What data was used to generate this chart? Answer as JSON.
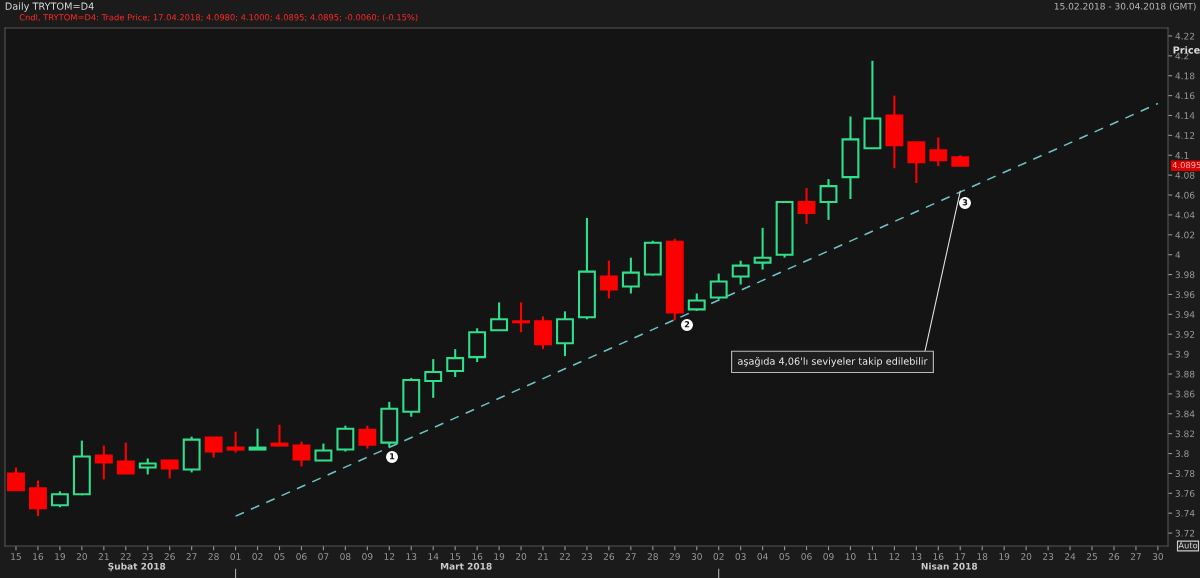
{
  "chart_data": {
    "type": "candlestick",
    "title": "Daily TRYTOM=D4",
    "subtitle": "Cndl, TRYTOM=D4: Trade Price; 17.04.2018; 4.0980; 4.1000; 4.0895; 4.0895; -0.0060; (-0.15%)",
    "ylabel": "Price",
    "categories": [
      "15",
      "16",
      "19",
      "20",
      "21",
      "22",
      "23",
      "26",
      "27",
      "28",
      "01",
      "02",
      "05",
      "06",
      "07",
      "08",
      "09",
      "12",
      "13",
      "14",
      "15",
      "16",
      "19",
      "20",
      "21",
      "22",
      "23",
      "26",
      "27",
      "28",
      "29",
      "30",
      "02",
      "03",
      "04",
      "05",
      "06",
      "09",
      "10",
      "11",
      "12",
      "13",
      "16",
      "17",
      "18",
      "19",
      "20",
      "23",
      "24",
      "25",
      "26",
      "27",
      "30"
    ],
    "ohlc": [
      [
        3.78,
        3.786,
        3.763,
        3.763
      ],
      [
        3.765,
        3.773,
        3.737,
        3.745
      ],
      [
        3.748,
        3.762,
        3.746,
        3.759
      ],
      [
        3.759,
        3.813,
        3.758,
        3.797
      ],
      [
        3.798,
        3.808,
        3.774,
        3.791
      ],
      [
        3.792,
        3.811,
        3.78,
        3.78
      ],
      [
        3.786,
        3.795,
        3.779,
        3.79
      ],
      [
        3.793,
        3.793,
        3.775,
        3.785
      ],
      [
        3.784,
        3.817,
        3.781,
        3.814
      ],
      [
        3.816,
        3.816,
        3.796,
        3.802
      ],
      [
        3.806,
        3.822,
        3.801,
        3.804
      ],
      [
        3.804,
        3.825,
        3.804,
        3.806
      ],
      [
        3.81,
        3.829,
        3.808,
        3.808
      ],
      [
        3.808,
        3.812,
        3.787,
        3.794
      ],
      [
        3.793,
        3.81,
        3.793,
        3.803
      ],
      [
        3.804,
        3.828,
        3.802,
        3.825
      ],
      [
        3.824,
        3.828,
        3.805,
        3.809
      ],
      [
        3.811,
        3.852,
        3.806,
        3.845
      ],
      [
        3.842,
        3.876,
        3.837,
        3.874
      ],
      [
        3.873,
        3.895,
        3.856,
        3.882
      ],
      [
        3.883,
        3.905,
        3.877,
        3.896
      ],
      [
        3.897,
        3.926,
        3.892,
        3.922
      ],
      [
        3.924,
        3.952,
        3.924,
        3.935
      ],
      [
        3.933,
        3.952,
        3.922,
        3.932
      ],
      [
        3.933,
        3.938,
        3.905,
        3.91
      ],
      [
        3.911,
        3.943,
        3.898,
        3.935
      ],
      [
        3.937,
        4.037,
        3.935,
        3.983
      ],
      [
        3.978,
        3.994,
        3.956,
        3.965
      ],
      [
        3.968,
        3.997,
        3.961,
        3.982
      ],
      [
        3.98,
        4.014,
        3.979,
        4.012
      ],
      [
        4.013,
        4.016,
        3.934,
        3.942
      ],
      [
        3.945,
        3.961,
        3.944,
        3.954
      ],
      [
        3.957,
        3.981,
        3.955,
        3.973
      ],
      [
        3.978,
        3.994,
        3.97,
        3.989
      ],
      [
        3.992,
        4.027,
        3.985,
        3.997
      ],
      [
        4.0,
        4.053,
        3.997,
        4.053
      ],
      [
        4.053,
        4.067,
        4.031,
        4.042
      ],
      [
        4.053,
        4.076,
        4.035,
        4.069
      ],
      [
        4.078,
        4.139,
        4.056,
        4.116
      ],
      [
        4.107,
        4.195,
        4.107,
        4.137
      ],
      [
        4.14,
        4.16,
        4.087,
        4.11
      ],
      [
        4.113,
        4.113,
        4.072,
        4.093
      ],
      [
        4.105,
        4.118,
        4.089,
        4.095
      ],
      [
        4.098,
        4.1,
        4.0895,
        4.0895
      ],
      null,
      null,
      null,
      null,
      null,
      null,
      null,
      null,
      null
    ],
    "colors": [
      "#ff0000",
      "#ff0000",
      "#2ee08c",
      "#2ee08c",
      "#ff0000",
      "#ff0000",
      "#2ee08c",
      "#ff0000",
      "#2ee08c",
      "#ff0000",
      "#ff0000",
      "#2ee08c",
      "#ff0000",
      "#ff0000",
      "#2ee08c",
      "#2ee08c",
      "#ff0000",
      "#2ee08c",
      "#2ee08c",
      "#2ee08c",
      "#2ee08c",
      "#2ee08c",
      "#2ee08c",
      "#ff0000",
      "#ff0000",
      "#2ee08c",
      "#2ee08c",
      "#ff0000",
      "#2ee08c",
      "#2ee08c",
      "#ff0000",
      "#2ee08c",
      "#2ee08c",
      "#2ee08c",
      "#2ee08c",
      "#2ee08c",
      "#ff0000",
      "#2ee08c",
      "#2ee08c",
      "#2ee08c",
      "#ff0000",
      "#ff0000",
      "#ff0000",
      "#ff0000",
      null,
      null,
      null,
      null,
      null,
      null,
      null,
      null,
      null
    ],
    "series": [
      {
        "type": "line",
        "color": "#6cc4c4",
        "line_style": "dashed",
        "values": [
          null,
          null,
          null,
          null,
          null,
          null,
          null,
          null,
          null,
          null,
          3.737,
          null,
          null,
          null,
          null,
          null,
          null,
          null,
          null,
          null,
          null,
          null,
          null,
          null,
          null,
          null,
          null,
          null,
          null,
          null,
          null,
          null,
          null,
          null,
          null,
          null,
          null,
          null,
          null,
          null,
          null,
          null,
          null,
          null,
          null,
          null,
          null,
          null,
          null,
          null,
          null,
          null,
          4.152
        ]
      }
    ],
    "ylim": [
      3.707,
      4.228
    ],
    "yticks": [
      3.72,
      3.74,
      3.76,
      3.78,
      3.8,
      3.82,
      3.84,
      3.86,
      3.88,
      3.9,
      3.92,
      3.94,
      3.96,
      3.98,
      4,
      4.02,
      4.04,
      4.06,
      4.08,
      4.1,
      4.12,
      4.14,
      4.16,
      4.18,
      4.2,
      4.22
    ],
    "grid": false,
    "legend": false,
    "annotations": [
      "15.02.2018 - 30.04.2018 (GMT)",
      "Şubat 2018",
      "Mart 2018",
      "Nisan 2018",
      "1",
      "2",
      "3",
      {
        "text": "aşağıda 4,06'lı seviyeler takip edilebilir",
        "x": "17",
        "y": 4.064
      },
      {
        "text": "4.0895",
        "y": 4.0895
      },
      "Auto"
    ]
  }
}
